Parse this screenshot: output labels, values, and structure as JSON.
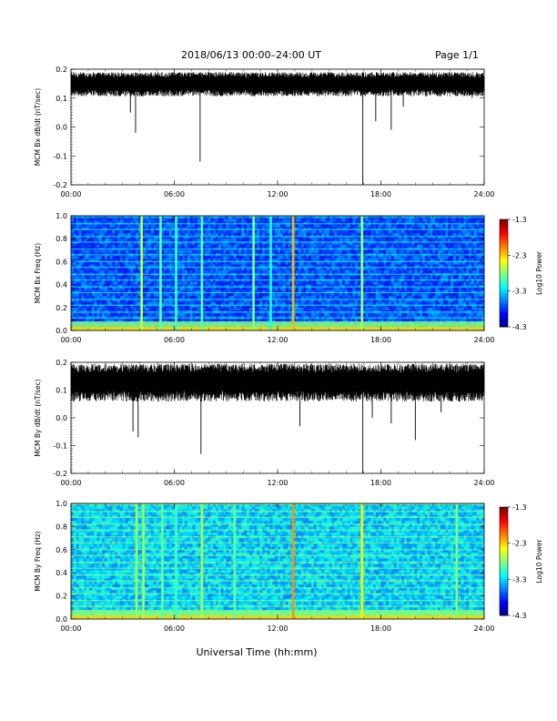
{
  "header": {
    "title": "2018/06/13  00:00–24:00 UT",
    "page": "Page 1/1"
  },
  "xlabel": "Universal Time (hh:mm)",
  "chart_data": [
    {
      "type": "line",
      "ylabel": "MCM Bx dB/dt (nT/sec)",
      "ylim": [
        -0.2,
        0.2
      ],
      "yticks": [
        "0.2",
        "0.1",
        "0.0",
        "-0.1",
        "-0.2"
      ],
      "xticks": [
        "00:00",
        "06:00",
        "12:00",
        "18:00",
        "24:00"
      ],
      "x_range_hours": [
        0,
        24
      ],
      "baseline": 0.15,
      "band": [
        0.11,
        0.19
      ],
      "dips": [
        {
          "t": 3.45,
          "y": 0.05
        },
        {
          "t": 3.75,
          "y": -0.02
        },
        {
          "t": 7.5,
          "y": -0.12
        },
        {
          "t": 16.95,
          "y": -0.2
        },
        {
          "t": 17.7,
          "y": 0.02
        },
        {
          "t": 18.6,
          "y": -0.01
        },
        {
          "t": 19.3,
          "y": 0.07
        },
        {
          "t": 23.3,
          "y": 0.1
        }
      ]
    },
    {
      "type": "heatmap",
      "ylabel": "MCM Bx Freq (Hz)",
      "ylim": [
        0.0,
        1.0
      ],
      "yticks": [
        "1.0",
        "0.8",
        "0.6",
        "0.4",
        "0.2",
        "0.0"
      ],
      "xticks": [
        "00:00",
        "06:00",
        "12:00",
        "18:00",
        "24:00"
      ],
      "colorbar": {
        "label": "Log10 Power",
        "ticks": [
          "-1.3",
          "-2.3",
          "-3.3",
          "-4.3"
        ],
        "range": [
          -4.3,
          -1.3
        ]
      },
      "background_level": -3.7,
      "harmonic_lines_hz": [
        0.05,
        0.11,
        0.16,
        0.22,
        0.27,
        0.33,
        0.38,
        0.44,
        0.49,
        0.55,
        0.6,
        0.66,
        0.71,
        0.77,
        0.82,
        0.88,
        0.93,
        0.99
      ],
      "vertical_bursts": [
        {
          "t": 4.1,
          "level": -2.6
        },
        {
          "t": 5.2,
          "level": -2.9
        },
        {
          "t": 6.1,
          "level": -3.0
        },
        {
          "t": 7.6,
          "level": -2.9
        },
        {
          "t": 10.6,
          "level": -2.8
        },
        {
          "t": 11.6,
          "level": -3.1
        },
        {
          "t": 12.9,
          "level": -2.2
        },
        {
          "t": 16.9,
          "level": -2.7
        }
      ]
    },
    {
      "type": "line",
      "ylabel": "MCM By dB/dt (nT/sec)",
      "ylim": [
        -0.2,
        0.2
      ],
      "yticks": [
        "0.2",
        "0.1",
        "0.0",
        "-0.1",
        "-0.2"
      ],
      "xticks": [
        "00:00",
        "06:00",
        "12:00",
        "18:00",
        "24:00"
      ],
      "x_range_hours": [
        0,
        24
      ],
      "baseline": 0.13,
      "band": [
        0.06,
        0.19
      ],
      "dips": [
        {
          "t": 3.6,
          "y": -0.05
        },
        {
          "t": 3.9,
          "y": -0.07
        },
        {
          "t": 7.55,
          "y": -0.13
        },
        {
          "t": 13.3,
          "y": -0.03
        },
        {
          "t": 16.95,
          "y": -0.2
        },
        {
          "t": 17.5,
          "y": 0.0
        },
        {
          "t": 18.6,
          "y": -0.02
        },
        {
          "t": 20.0,
          "y": -0.08
        },
        {
          "t": 21.5,
          "y": 0.02
        }
      ]
    },
    {
      "type": "heatmap",
      "ylabel": "MCM By Freq (Hz)",
      "ylim": [
        0.0,
        1.0
      ],
      "yticks": [
        "1.0",
        "0.8",
        "0.6",
        "0.4",
        "0.2",
        "0.0"
      ],
      "xticks": [
        "00:00",
        "06:00",
        "12:00",
        "18:00",
        "24:00"
      ],
      "colorbar": {
        "label": "Log10 Power",
        "ticks": [
          "-1.3",
          "-2.3",
          "-3.3",
          "-4.3"
        ],
        "range": [
          -4.3,
          -1.3
        ]
      },
      "background_level": -3.3,
      "harmonic_lines_hz": [
        0.05,
        0.11,
        0.16,
        0.22,
        0.27,
        0.33,
        0.38,
        0.44,
        0.49,
        0.55,
        0.6,
        0.66,
        0.71,
        0.77,
        0.82,
        0.88,
        0.93,
        0.99
      ],
      "vertical_bursts": [
        {
          "t": 3.8,
          "level": -2.7
        },
        {
          "t": 4.2,
          "level": -2.7
        },
        {
          "t": 5.3,
          "level": -2.9
        },
        {
          "t": 6.1,
          "level": -3.0
        },
        {
          "t": 7.6,
          "level": -2.7
        },
        {
          "t": 9.5,
          "level": -2.9
        },
        {
          "t": 12.9,
          "level": -2.1
        },
        {
          "t": 16.9,
          "level": -2.4
        },
        {
          "t": 22.4,
          "level": -2.8
        }
      ]
    }
  ]
}
